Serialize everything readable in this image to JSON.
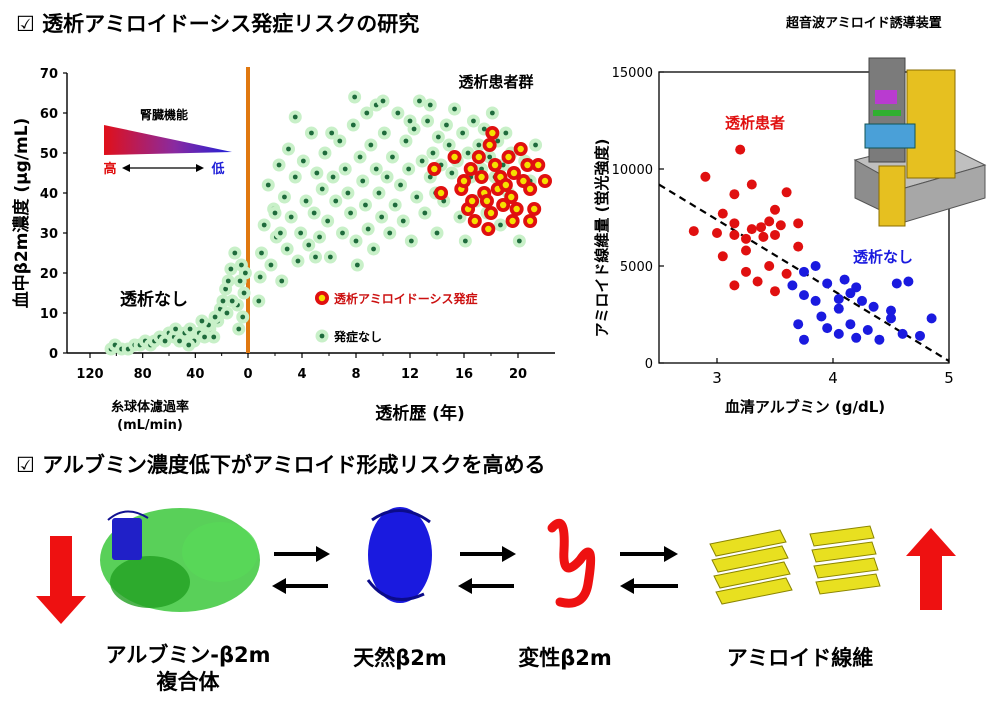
{
  "heading1": "☑ 透析アミロイドーシス発症リスクの研究",
  "device_label": "超音波アミロイド誘導装置",
  "heading2": "☑ アルブミン濃度低下がアミロイド形成リスクを高める",
  "colors": {
    "onset_fill": "#e01010",
    "onset_ring": "#f5e000",
    "none_fill": "#1e6b3c",
    "none_halo": "#c8f0c8",
    "patient": "#e01010",
    "nondialysis": "#1a1adf",
    "divider": "#e07810",
    "arrow_red": "#ee1111"
  },
  "chart_data": [
    {
      "type": "scatter",
      "ylabel": "血中β2m濃度 (µg/mL)",
      "ylim": [
        0,
        70
      ],
      "y_ticks": [
        "0",
        "10",
        "20",
        "30",
        "40",
        "50",
        "60",
        "70"
      ],
      "left_panel": {
        "xlabel": "糸球体濾過率\n(mL/min)",
        "xlim": [
          120,
          0
        ],
        "x_ticks": [
          "120",
          "80",
          "40",
          "0"
        ],
        "group_label": "透析なし",
        "kidney_label": "腎臓機能",
        "kidney_high": "高",
        "kidney_low": "低",
        "points": [
          [
            104,
            1
          ],
          [
            101,
            2
          ],
          [
            96,
            1
          ],
          [
            91,
            1
          ],
          [
            86,
            2
          ],
          [
            82,
            2
          ],
          [
            78,
            3
          ],
          [
            74,
            2
          ],
          [
            71,
            3
          ],
          [
            67,
            4
          ],
          [
            63,
            3
          ],
          [
            60,
            5
          ],
          [
            56,
            4
          ],
          [
            52,
            3
          ],
          [
            48,
            5
          ],
          [
            44,
            6
          ],
          [
            41,
            3
          ],
          [
            37,
            5
          ],
          [
            33,
            4
          ],
          [
            29,
            6
          ],
          [
            26,
            4
          ],
          [
            23,
            8
          ],
          [
            21,
            11
          ],
          [
            19,
            13
          ],
          [
            17,
            16
          ],
          [
            15,
            18
          ],
          [
            13,
            21
          ],
          [
            10,
            25
          ],
          [
            8,
            12
          ],
          [
            6,
            18
          ],
          [
            5,
            22
          ],
          [
            4,
            9
          ],
          [
            3,
            15
          ],
          [
            2,
            20
          ],
          [
            16,
            10
          ],
          [
            12,
            13
          ],
          [
            7,
            6
          ],
          [
            25,
            9
          ],
          [
            30,
            7
          ],
          [
            35,
            8
          ],
          [
            55,
            6
          ],
          [
            45,
            2
          ]
        ]
      },
      "right_panel": {
        "xlabel": "透析歴 (年)",
        "xlim": [
          0,
          22
        ],
        "x_ticks": [
          "0",
          "4",
          "8",
          "12",
          "16",
          "20"
        ],
        "group_label": "透析患者群",
        "legend_onset": "透析アミロイドーシス発症",
        "legend_none": "発症なし",
        "none_points": [
          [
            0.8,
            13
          ],
          [
            0.9,
            19
          ],
          [
            1,
            25
          ],
          [
            1.2,
            32
          ],
          [
            1.5,
            42
          ],
          [
            1.7,
            22
          ],
          [
            1.9,
            36
          ],
          [
            2.1,
            29
          ],
          [
            2.3,
            47
          ],
          [
            2.5,
            18
          ],
          [
            2.7,
            39
          ],
          [
            2.9,
            26
          ],
          [
            3,
            51
          ],
          [
            3.2,
            34
          ],
          [
            3.5,
            44
          ],
          [
            3.7,
            23
          ],
          [
            3.9,
            30
          ],
          [
            4.1,
            48
          ],
          [
            4.3,
            38
          ],
          [
            4.5,
            27
          ],
          [
            4.7,
            55
          ],
          [
            4.9,
            35
          ],
          [
            5.1,
            45
          ],
          [
            5.3,
            29
          ],
          [
            5.5,
            41
          ],
          [
            5.7,
            50
          ],
          [
            5.9,
            33
          ],
          [
            6.1,
            24
          ],
          [
            6.3,
            44
          ],
          [
            6.5,
            38
          ],
          [
            6.8,
            53
          ],
          [
            7,
            30
          ],
          [
            7.2,
            46
          ],
          [
            7.4,
            40
          ],
          [
            7.6,
            35
          ],
          [
            7.8,
            57
          ],
          [
            8,
            28
          ],
          [
            8.1,
            22
          ],
          [
            8.3,
            49
          ],
          [
            8.5,
            43
          ],
          [
            8.7,
            37
          ],
          [
            8.9,
            31
          ],
          [
            9.1,
            52
          ],
          [
            9.3,
            26
          ],
          [
            9.5,
            46
          ],
          [
            9.7,
            40
          ],
          [
            9.9,
            34
          ],
          [
            10.1,
            55
          ],
          [
            10.3,
            44
          ],
          [
            10.5,
            30
          ],
          [
            10.7,
            49
          ],
          [
            10.9,
            37
          ],
          [
            11.1,
            60
          ],
          [
            11.3,
            42
          ],
          [
            11.5,
            33
          ],
          [
            11.7,
            53
          ],
          [
            11.9,
            46
          ],
          [
            12.1,
            28
          ],
          [
            12.3,
            56
          ],
          [
            12.5,
            39
          ],
          [
            12.7,
            63
          ],
          [
            12.9,
            48
          ],
          [
            13.1,
            35
          ],
          [
            13.3,
            58
          ],
          [
            13.5,
            44
          ],
          [
            13.7,
            50
          ],
          [
            13.9,
            40
          ],
          [
            14.1,
            54
          ],
          [
            14.3,
            47
          ],
          [
            14.5,
            38
          ],
          [
            14.7,
            57
          ],
          [
            14.9,
            52
          ],
          [
            15.1,
            45
          ],
          [
            15.3,
            61
          ],
          [
            15.5,
            48
          ],
          [
            15.7,
            34
          ],
          [
            15.9,
            55
          ],
          [
            16.1,
            28
          ],
          [
            16.3,
            50
          ],
          [
            16.5,
            44
          ],
          [
            16.7,
            58
          ],
          [
            16.9,
            38
          ],
          [
            17.1,
            52
          ],
          [
            17.3,
            46
          ],
          [
            17.5,
            56
          ],
          [
            17.7,
            35
          ],
          [
            17.9,
            49
          ],
          [
            18.1,
            60
          ],
          [
            18.3,
            44
          ],
          [
            18.5,
            53
          ],
          [
            18.7,
            32
          ],
          [
            18.9,
            47
          ],
          [
            19.1,
            55
          ],
          [
            19.3,
            40
          ],
          [
            19.5,
            50
          ],
          [
            19.7,
            45
          ],
          [
            19.9,
            36
          ],
          [
            20.1,
            28
          ],
          [
            20.5,
            48
          ],
          [
            20.9,
            43
          ],
          [
            21.3,
            52
          ],
          [
            9.5,
            62
          ],
          [
            10,
            63
          ],
          [
            7.9,
            64
          ],
          [
            13.5,
            62
          ],
          [
            6.2,
            55
          ],
          [
            3.5,
            59
          ],
          [
            8.8,
            60
          ],
          [
            12,
            58
          ],
          [
            2,
            35
          ],
          [
            2.4,
            30
          ],
          [
            5,
            24
          ],
          [
            14,
            30
          ]
        ],
        "onset_points": [
          [
            13.8,
            46
          ],
          [
            14.3,
            40
          ],
          [
            15.3,
            49
          ],
          [
            15.8,
            41
          ],
          [
            16,
            43
          ],
          [
            16.3,
            36
          ],
          [
            16.5,
            46
          ],
          [
            16.8,
            33
          ],
          [
            17.1,
            49
          ],
          [
            17.3,
            44
          ],
          [
            17.5,
            40
          ],
          [
            17.7,
            38
          ],
          [
            17.9,
            52
          ],
          [
            18,
            35
          ],
          [
            18.3,
            47
          ],
          [
            18.5,
            41
          ],
          [
            18.7,
            44
          ],
          [
            18.9,
            37
          ],
          [
            19.1,
            42
          ],
          [
            19.3,
            49
          ],
          [
            19.5,
            39
          ],
          [
            19.7,
            45
          ],
          [
            19.9,
            36
          ],
          [
            20.2,
            51
          ],
          [
            20.4,
            43
          ],
          [
            20.7,
            47
          ],
          [
            20.9,
            41
          ],
          [
            21.2,
            36
          ],
          [
            21.5,
            47
          ],
          [
            22,
            43
          ],
          [
            18.1,
            55
          ],
          [
            16.6,
            38
          ],
          [
            19.6,
            33
          ],
          [
            17.8,
            31
          ],
          [
            20.9,
            33
          ]
        ]
      }
    },
    {
      "type": "scatter",
      "xlabel": "血清アルブミン (g/dL)",
      "ylabel": "アミロイド線維量 (蛍光強度)",
      "xlim": [
        2.5,
        5
      ],
      "ylim": [
        0,
        15000
      ],
      "x_ticks": [
        "3",
        "4",
        "5"
      ],
      "y_ticks": [
        "0",
        "5000",
        "10000",
        "15000"
      ],
      "trendline": [
        [
          2.5,
          9200
        ],
        [
          5,
          100
        ]
      ],
      "series": [
        {
          "name": "透析患者",
          "color": "#e01010",
          "points": [
            [
              3.2,
              11000
            ],
            [
              2.9,
              9600
            ],
            [
              3.3,
              9200
            ],
            [
              3.15,
              8700
            ],
            [
              3.6,
              8800
            ],
            [
              3.05,
              7700
            ],
            [
              3.5,
              7900
            ],
            [
              3.45,
              7300
            ],
            [
              3.15,
              7200
            ],
            [
              3.38,
              7000
            ],
            [
              3.55,
              7100
            ],
            [
              3.7,
              7200
            ],
            [
              3.3,
              6900
            ],
            [
              3.15,
              6600
            ],
            [
              3.25,
              6400
            ],
            [
              2.8,
              6800
            ],
            [
              3.0,
              6700
            ],
            [
              3.4,
              6500
            ],
            [
              3.5,
              6600
            ],
            [
              3.7,
              6000
            ],
            [
              3.25,
              5800
            ],
            [
              3.05,
              5500
            ],
            [
              3.45,
              5000
            ],
            [
              3.25,
              4700
            ],
            [
              3.35,
              4200
            ],
            [
              3.15,
              4000
            ],
            [
              3.5,
              3700
            ],
            [
              3.6,
              4600
            ]
          ]
        },
        {
          "name": "透析なし",
          "color": "#1a1adf",
          "points": [
            [
              3.85,
              5000
            ],
            [
              3.75,
              4700
            ],
            [
              4.1,
              4300
            ],
            [
              3.95,
              4100
            ],
            [
              4.2,
              3900
            ],
            [
              3.75,
              3500
            ],
            [
              4.15,
              3600
            ],
            [
              4.55,
              4100
            ],
            [
              4.65,
              4200
            ],
            [
              3.85,
              3200
            ],
            [
              4.05,
              2800
            ],
            [
              4.35,
              2900
            ],
            [
              3.9,
              2400
            ],
            [
              4.15,
              2000
            ],
            [
              4.5,
              2300
            ],
            [
              3.7,
              2000
            ],
            [
              3.95,
              1800
            ],
            [
              4.3,
              1700
            ],
            [
              4.6,
              1500
            ],
            [
              4.75,
              1400
            ],
            [
              3.75,
              1200
            ],
            [
              4.05,
              1500
            ],
            [
              4.2,
              1300
            ],
            [
              4.05,
              3300
            ],
            [
              4.5,
              2700
            ],
            [
              3.65,
              4000
            ],
            [
              4.85,
              2300
            ],
            [
              4.4,
              1200
            ],
            [
              4.25,
              3200
            ]
          ]
        }
      ]
    }
  ],
  "pathway": {
    "labels": [
      "アルブミン-β2m\n複合体",
      "天然β2m",
      "変性β2m",
      "アミロイド線維"
    ]
  }
}
